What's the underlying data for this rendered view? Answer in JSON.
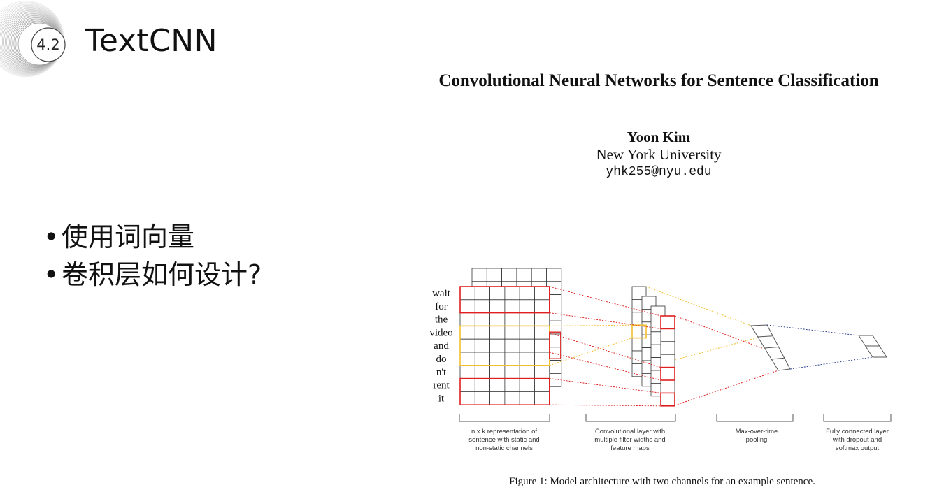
{
  "section": {
    "number": "4.2",
    "title": "TextCNN"
  },
  "bullets": [
    "使用词向量",
    "卷积层如何设计?"
  ],
  "paper": {
    "title": "Convolutional Neural Networks for Sentence Classification",
    "author": "Yoon Kim",
    "affiliation": "New York University",
    "email": "yhk255@nyu.edu"
  },
  "figure": {
    "words": [
      "wait",
      "for",
      "the",
      "video",
      "and",
      "do",
      "n't",
      "rent",
      "it"
    ],
    "stage_labels": [
      [
        "n x k representation of",
        "sentence with static and",
        "non-static channels"
      ],
      [
        "Convolutional layer with",
        "multiple filter widths and",
        "feature maps"
      ],
      [
        "Max-over-time",
        "pooling"
      ],
      [
        "Fully connected layer",
        "with dropout and",
        "softmax output"
      ]
    ],
    "caption": "Figure 1: Model architecture with two channels for an example sentence.",
    "colors": {
      "red": "#e02020",
      "yellow": "#f0c030",
      "blue": "#2a3f8f",
      "grid": "#333333"
    }
  }
}
